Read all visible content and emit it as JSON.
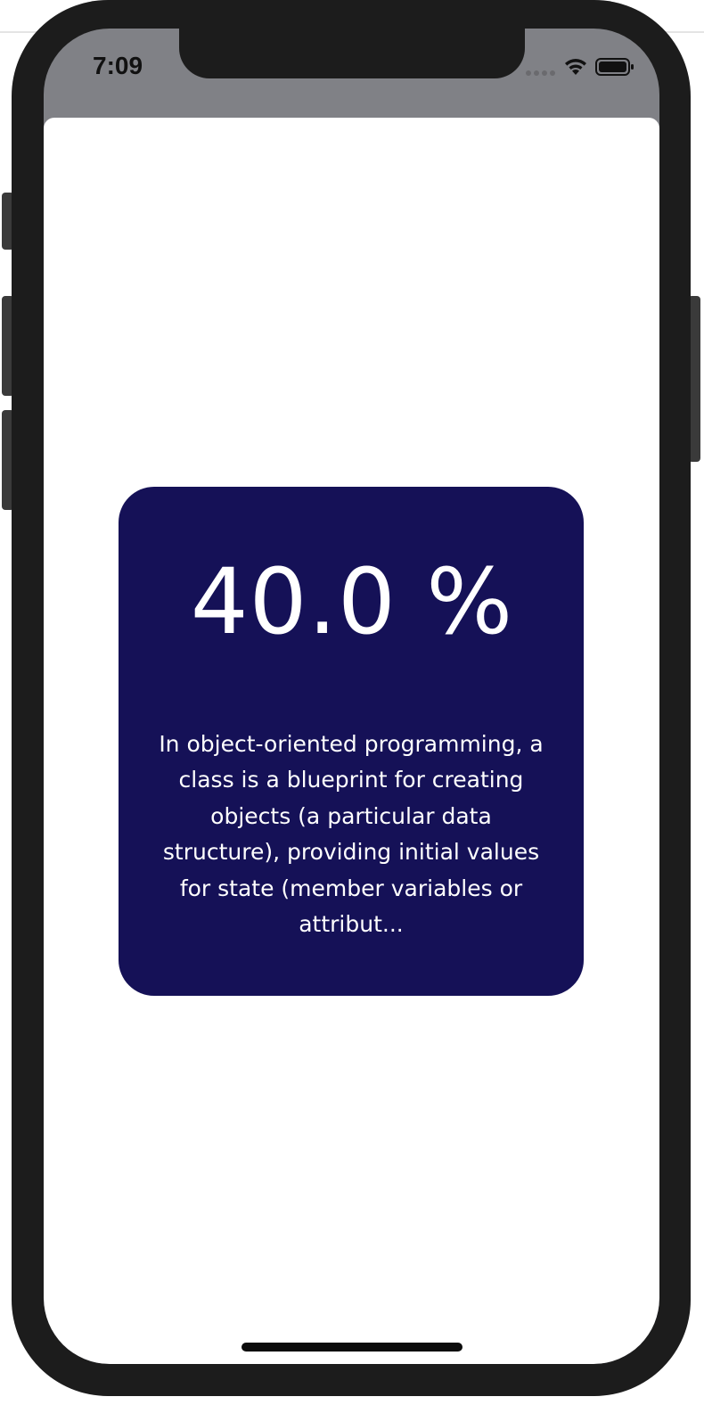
{
  "status_bar": {
    "time": "7:09",
    "icons": [
      "cellular-signal-icon",
      "wifi-icon",
      "battery-icon"
    ]
  },
  "card": {
    "percentage": "40.0 %",
    "description": "In object-oriented programming, a class is a blueprint for creating objects (a particular data structure), providing initial values for state (member variables or attribut..."
  },
  "colors": {
    "card_background": "#151157",
    "card_text": "#ffffff",
    "status_bar_background": "#808186",
    "device_frame": "#1c1c1c"
  }
}
